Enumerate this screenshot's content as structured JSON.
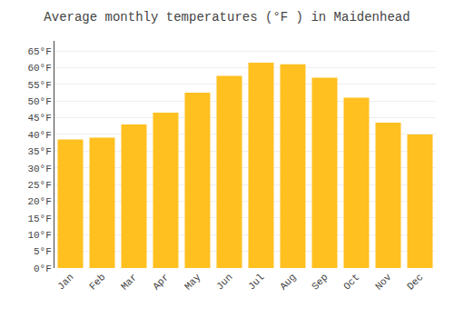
{
  "chart_data": {
    "type": "bar",
    "title": "Average monthly temperatures (°F ) in Maidenhead",
    "categories": [
      "Jan",
      "Feb",
      "Mar",
      "Apr",
      "May",
      "Jun",
      "Jul",
      "Aug",
      "Sep",
      "Oct",
      "Nov",
      "Dec"
    ],
    "values": [
      38.5,
      39.0,
      43.0,
      46.5,
      52.5,
      57.5,
      61.5,
      61.0,
      57.0,
      51.0,
      43.5,
      40.0
    ],
    "color": "#FFC020",
    "ylim": [
      0,
      68
    ],
    "yticks": [
      {
        "value": 0,
        "label": "0°F"
      },
      {
        "value": 5,
        "label": "5°F"
      },
      {
        "value": 10,
        "label": "10°F"
      },
      {
        "value": 15,
        "label": "15°F"
      },
      {
        "value": 20,
        "label": "20°F"
      },
      {
        "value": 25,
        "label": "25°F"
      },
      {
        "value": 30,
        "label": "30°F"
      },
      {
        "value": 35,
        "label": "35°F"
      },
      {
        "value": 40,
        "label": "40°F"
      },
      {
        "value": 45,
        "label": "45°F"
      },
      {
        "value": 50,
        "label": "50°F"
      },
      {
        "value": 55,
        "label": "55°F"
      },
      {
        "value": 60,
        "label": "60°F"
      },
      {
        "value": 65,
        "label": "65°F"
      }
    ],
    "grid": true
  }
}
